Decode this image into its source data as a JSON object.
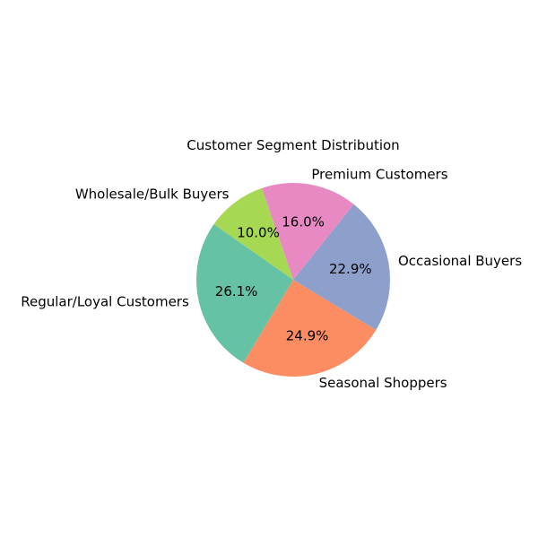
{
  "chart_data": {
    "type": "pie",
    "title": "Customer Segment Distribution",
    "start_angle_deg": 145,
    "direction": "counterclockwise",
    "slices": [
      {
        "label": "Regular/Loyal Customers",
        "value": 26.1,
        "percent_label": "26.1%",
        "color": "#66c2a5"
      },
      {
        "label": "Seasonal Shoppers",
        "value": 24.9,
        "percent_label": "24.9%",
        "color": "#fc8d62"
      },
      {
        "label": "Occasional Buyers",
        "value": 22.9,
        "percent_label": "22.9%",
        "color": "#8da0cb"
      },
      {
        "label": "Premium Customers",
        "value": 16.0,
        "percent_label": "16.0%",
        "color": "#e78ac3"
      },
      {
        "label": "Wholesale/Bulk Buyers",
        "value": 10.0,
        "percent_label": "10.0%",
        "color": "#a6d854"
      }
    ]
  }
}
